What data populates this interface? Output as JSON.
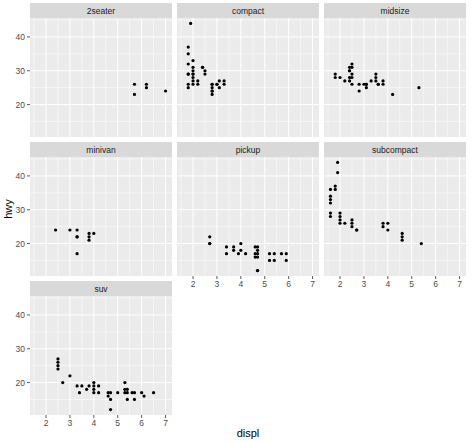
{
  "chart_data": {
    "type": "scatter",
    "x_label": "displ",
    "y_label": "hwy",
    "xlim": [
      1.33,
      7.27
    ],
    "xticks": [
      2,
      3,
      4,
      5,
      6,
      7
    ],
    "ylim": [
      10.4,
      45.6
    ],
    "yticks": [
      20,
      30,
      40
    ],
    "grid": true,
    "marker": "circle",
    "color": "#000000",
    "series": [
      {
        "name": "2seater",
        "x": [
          5.7,
          5.7,
          6.2,
          6.2,
          7.0
        ],
        "values": [
          26,
          23,
          26,
          25,
          24
        ]
      },
      {
        "name": "compact",
        "x": [
          1.8,
          1.8,
          2.0,
          2.0,
          2.8,
          2.8,
          3.1,
          1.8,
          1.8,
          2.0,
          2.0,
          2.8,
          2.8,
          3.1,
          1.9,
          2.0,
          2.0,
          2.5,
          2.8,
          1.8,
          1.8,
          1.8,
          2.2,
          2.2,
          2.4,
          2.4,
          3.0,
          3.0,
          3.3,
          3.3,
          2.0,
          2.0,
          2.8,
          2.5
        ],
        "values": [
          29,
          29,
          31,
          30,
          26,
          26,
          27,
          26,
          25,
          28,
          27,
          25,
          24,
          25,
          44,
          29,
          26,
          29,
          23,
          35,
          37,
          32,
          26,
          27,
          31,
          31,
          26,
          26,
          27,
          26,
          33,
          29,
          24,
          30
        ]
      },
      {
        "name": "midsize",
        "x": [
          2.4,
          2.4,
          3.1,
          3.5,
          3.6,
          2.4,
          2.4,
          2.5,
          2.5,
          3.3,
          2.5,
          2.5,
          3.5,
          3.1,
          3.8,
          3.8,
          5.3,
          2.2,
          2.4,
          3.0,
          3.5,
          2.8,
          3.1,
          4.2,
          1.8,
          2.0,
          2.8,
          3.6,
          1.8,
          2.5
        ],
        "values": [
          27,
          30,
          26,
          29,
          26,
          30,
          28,
          26,
          28,
          27,
          31,
          32,
          27,
          26,
          26,
          27,
          25,
          27,
          31,
          26,
          28,
          24,
          25,
          23,
          29,
          28,
          26,
          26,
          28,
          29
        ]
      },
      {
        "name": "minivan",
        "x": [
          2.4,
          3.0,
          3.3,
          3.3,
          3.3,
          3.8,
          3.8,
          3.8,
          4.0,
          3.3
        ],
        "values": [
          24,
          24,
          22,
          24,
          17,
          22,
          21,
          23,
          23,
          22
        ]
      },
      {
        "name": "pickup",
        "x": [
          2.7,
          2.7,
          3.4,
          3.4,
          3.7,
          3.9,
          4.0,
          4.0,
          4.2,
          4.6,
          4.6,
          4.7,
          4.7,
          4.7,
          4.7,
          5.2,
          5.2,
          5.4,
          5.4,
          5.7,
          5.9,
          4.7,
          3.7,
          2.7,
          4.7,
          4.6,
          5.9
        ],
        "values": [
          20,
          22,
          19,
          17,
          19,
          17,
          20,
          18,
          17,
          17,
          16,
          19,
          17,
          12,
          18,
          17,
          15,
          17,
          15,
          17,
          17,
          12,
          18,
          20,
          16,
          19,
          15
        ]
      },
      {
        "name": "subcompact",
        "x": [
          1.6,
          1.6,
          1.6,
          1.6,
          1.6,
          1.8,
          1.8,
          2.0,
          1.9,
          1.9,
          2.0,
          2.0,
          2.5,
          2.5,
          2.7,
          2.7,
          3.8,
          3.8,
          4.0,
          4.0,
          4.6,
          4.6,
          4.6,
          5.4,
          2.0,
          1.6,
          2.2,
          2.5
        ],
        "values": [
          33,
          32,
          29,
          34,
          36,
          36,
          37,
          29,
          44,
          41,
          26,
          28,
          26,
          27,
          24,
          24,
          26,
          25,
          26,
          24,
          22,
          23,
          21,
          20,
          27,
          28,
          26,
          25
        ]
      },
      {
        "name": "suv",
        "x": [
          2.5,
          2.5,
          2.5,
          2.5,
          2.7,
          3.0,
          3.3,
          3.4,
          3.5,
          3.8,
          4.0,
          4.0,
          4.0,
          4.2,
          4.6,
          4.7,
          4.7,
          4.7,
          5.0,
          5.3,
          5.3,
          5.3,
          5.4,
          5.4,
          5.6,
          5.7,
          5.7,
          6.0,
          6.1,
          6.5,
          4.0,
          4.2,
          4.6,
          5.4,
          3.7
        ],
        "values": [
          27,
          25,
          26,
          24,
          20,
          22,
          19,
          17,
          19,
          19,
          17,
          19,
          20,
          19,
          17,
          17,
          15,
          12,
          17,
          20,
          18,
          17,
          18,
          17,
          17,
          17,
          15,
          17,
          16,
          17,
          18,
          17,
          16,
          15,
          18
        ]
      }
    ]
  }
}
